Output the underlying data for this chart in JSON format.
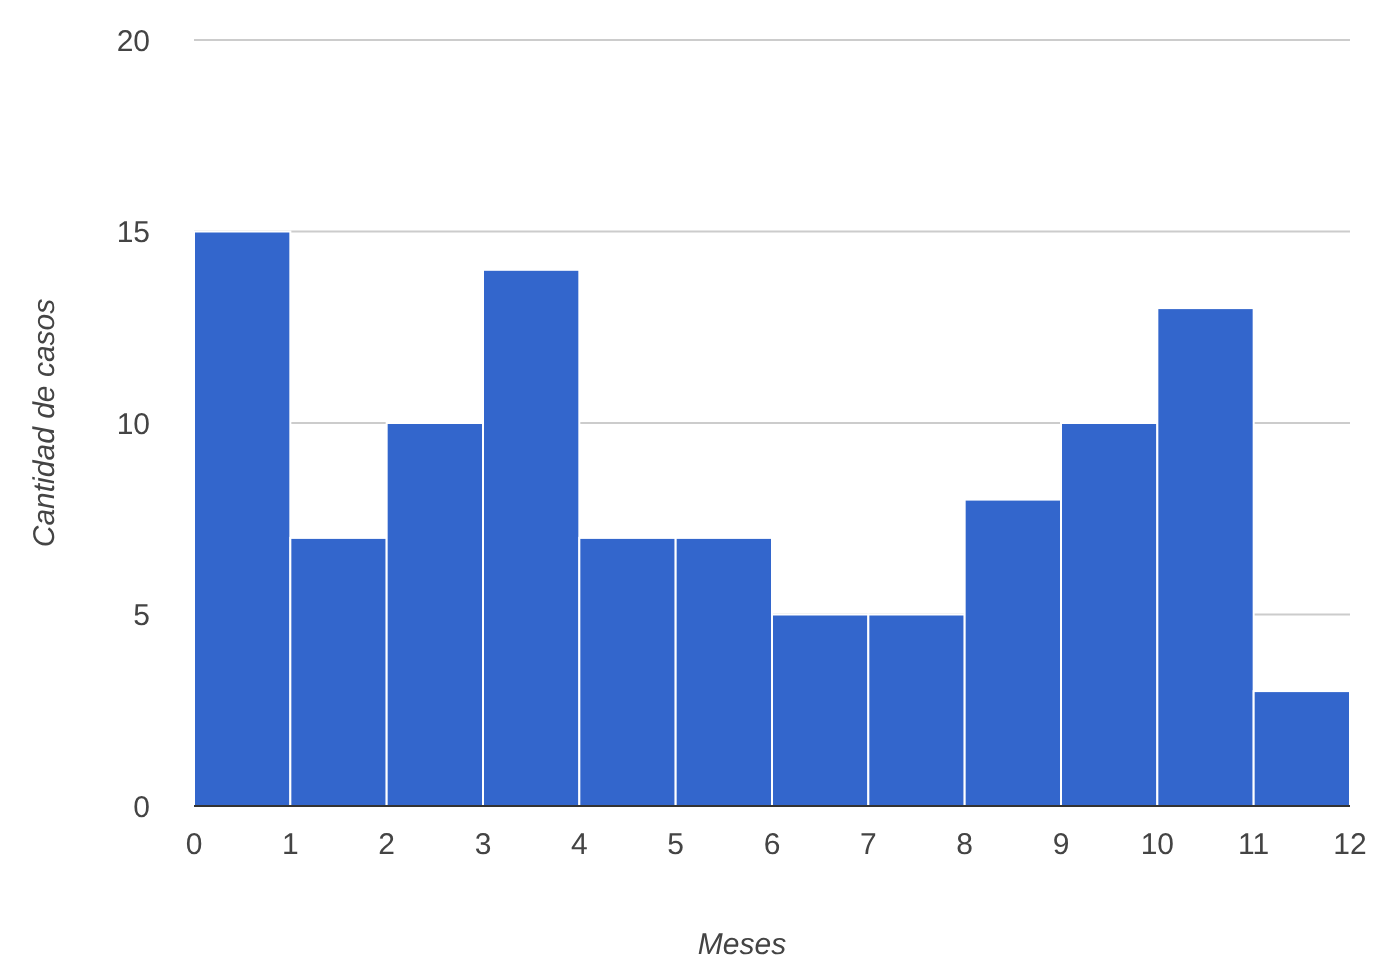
{
  "chart_data": {
    "type": "histogram",
    "xlabel": "Meses",
    "ylabel": "Cantidad de casos",
    "bins": [
      0,
      1,
      2,
      3,
      4,
      5,
      6,
      7,
      8,
      9,
      10,
      11,
      12
    ],
    "values": [
      15,
      7,
      10,
      14,
      7,
      7,
      5,
      5,
      8,
      10,
      13,
      3
    ],
    "color": "#3366cc",
    "xlim": [
      0,
      12
    ],
    "xticks": [
      0,
      1,
      2,
      3,
      4,
      5,
      6,
      7,
      8,
      9,
      10,
      11,
      12
    ],
    "ylim": [
      0,
      20
    ],
    "yticks": [
      0,
      5,
      10,
      15,
      20
    ],
    "grid": "y"
  }
}
